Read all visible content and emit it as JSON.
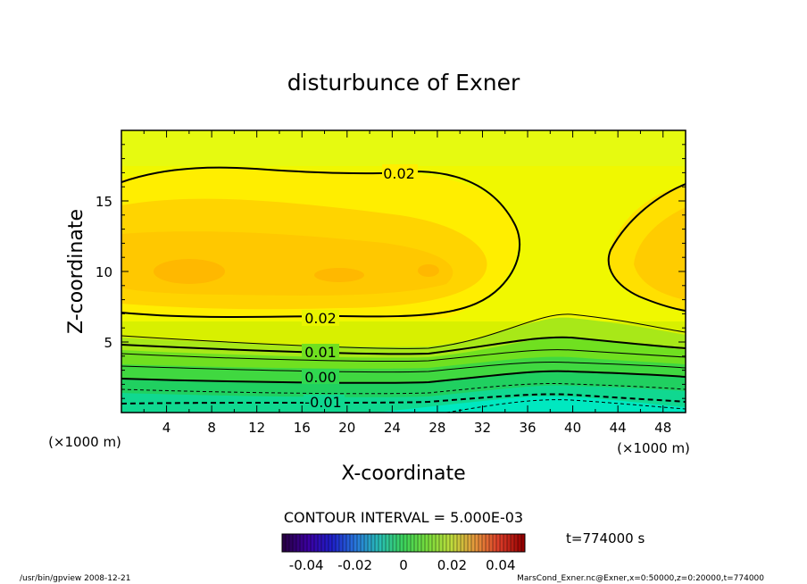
{
  "chart_data": {
    "type": "contour",
    "title": "disturbunce of Exner",
    "xlabel": "X-coordinate",
    "ylabel": "Z-coordinate",
    "x_unit": "(×1000 m)",
    "y_unit": "(×1000 m)",
    "xlim": [
      0,
      50
    ],
    "ylim": [
      0,
      20
    ],
    "x_ticks": [
      4,
      8,
      12,
      16,
      20,
      24,
      28,
      32,
      36,
      40,
      44,
      48
    ],
    "y_ticks": [
      5,
      10,
      15
    ],
    "contour_labels": [
      "0.02",
      "0.02",
      "0.01",
      "0.00",
      "-0.01"
    ],
    "contour_interval": "CONTOUR INTERVAL = 5.000E-03",
    "colorbar_ticks": [
      "-0.04",
      "-0.02",
      "0",
      "0.02",
      "0.04"
    ],
    "colorbar_range": [
      -0.05,
      0.05
    ],
    "time_label": "t=774000 s"
  },
  "footer": {
    "left": "/usr/bin/gpview   2008-12-21",
    "right": "MarsCond_Exner.nc@Exner,x=0:50000,z=0:20000,t=774000"
  },
  "colors": {
    "low": "#00e0c0",
    "mid_green": "#30d830",
    "yellow": "#ffff00",
    "orange": "#ffc000"
  }
}
